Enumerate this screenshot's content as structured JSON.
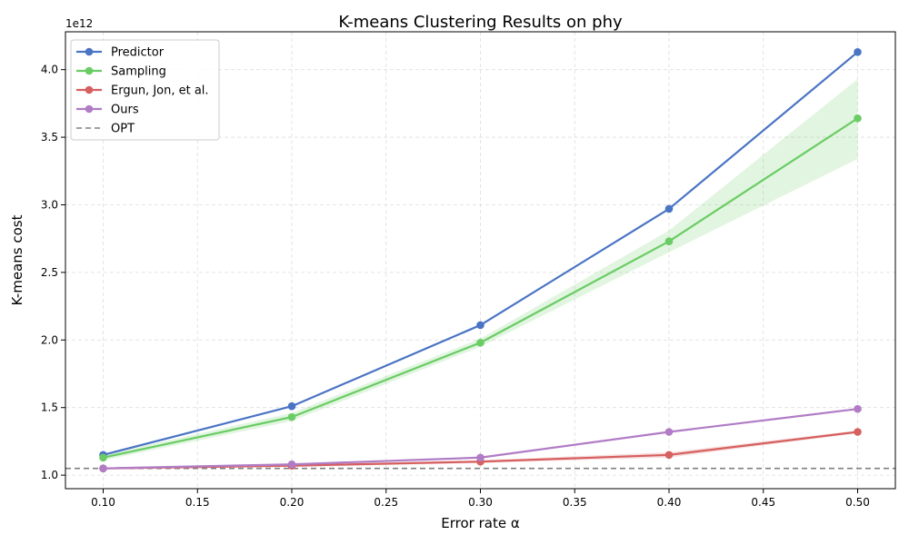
{
  "chart_data": {
    "type": "line",
    "title": "K-means Clustering Results on phy",
    "xlabel": "Error rate α",
    "ylabel": "K-means cost",
    "y_offset_label": "1e12",
    "x": [
      0.1,
      0.2,
      0.3,
      0.4,
      0.5
    ],
    "xlim": [
      0.08,
      0.52
    ],
    "ylim": [
      0.9,
      4.28
    ],
    "x_ticks": [
      "0.10",
      "0.15",
      "0.20",
      "0.25",
      "0.30",
      "0.35",
      "0.40",
      "0.45",
      "0.50"
    ],
    "x_tick_values": [
      0.1,
      0.15,
      0.2,
      0.25,
      0.3,
      0.35,
      0.4,
      0.45,
      0.5
    ],
    "y_ticks": [
      "1.0",
      "1.5",
      "2.0",
      "2.5",
      "3.0",
      "3.5",
      "4.0"
    ],
    "y_tick_values": [
      1.0,
      1.5,
      2.0,
      2.5,
      3.0,
      3.5,
      4.0
    ],
    "grid": true,
    "legend_position": "top-left",
    "series": [
      {
        "name": "Predictor",
        "color": "#4a74c4",
        "values": [
          1.15,
          1.51,
          2.11,
          2.97,
          4.13
        ],
        "band_low": null,
        "band_high": null
      },
      {
        "name": "Sampling",
        "color": "#6acc64",
        "values": [
          1.13,
          1.43,
          1.98,
          2.73,
          3.64
        ],
        "band_low": [
          1.11,
          1.4,
          1.95,
          2.65,
          3.34
        ],
        "band_high": [
          1.15,
          1.46,
          2.01,
          2.81,
          3.93
        ]
      },
      {
        "name": "Ergun, Jon, et al.",
        "color": "#d65f5f",
        "values": [
          1.05,
          1.07,
          1.1,
          1.15,
          1.32
        ],
        "band_low": [
          1.05,
          1.06,
          1.09,
          1.13,
          1.31
        ],
        "band_high": [
          1.055,
          1.08,
          1.11,
          1.17,
          1.33
        ]
      },
      {
        "name": "Ours",
        "color": "#b07cc6",
        "values": [
          1.05,
          1.08,
          1.13,
          1.32,
          1.49
        ],
        "band_low": null,
        "band_high": null
      }
    ],
    "reference_line": {
      "name": "OPT",
      "value": 1.05,
      "color": "#808080",
      "style": "dashed"
    }
  }
}
